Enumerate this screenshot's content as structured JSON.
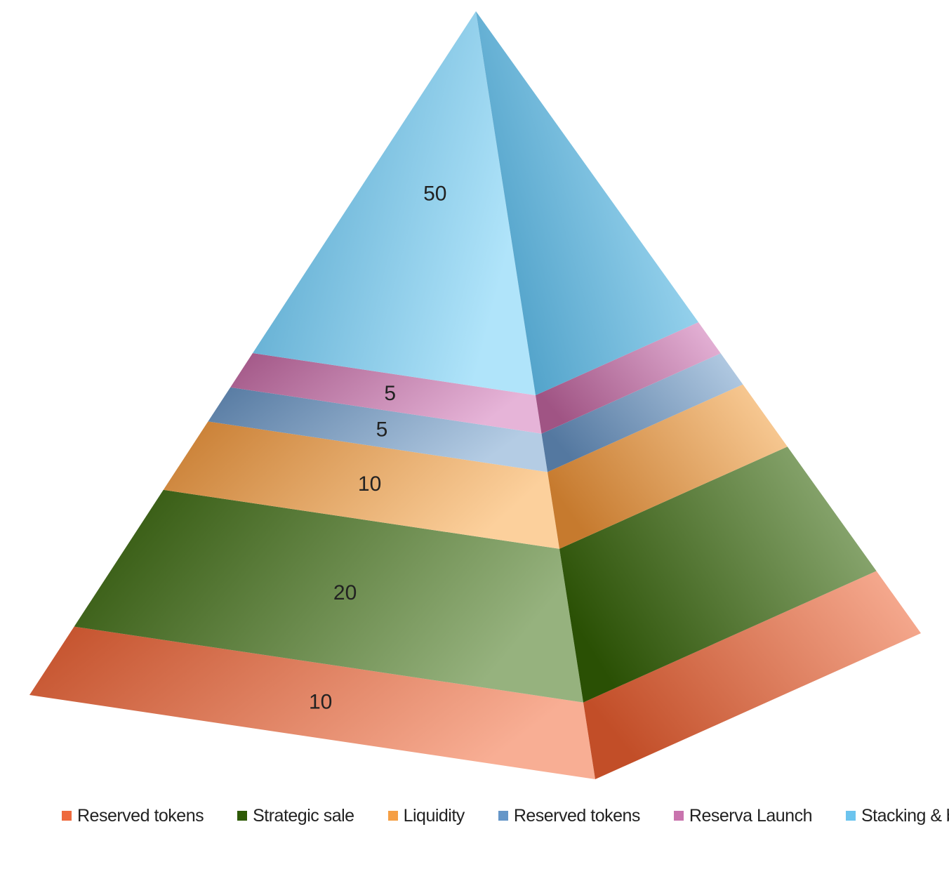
{
  "chart_data": {
    "type": "pyramid",
    "order": "bottom-to-top",
    "series": [
      {
        "name": "Reserved tokens",
        "value": 10,
        "color": "#ee6a3d",
        "dark": "#c24e28",
        "light": "#f8ae94"
      },
      {
        "name": "Strategic sale",
        "value": 20,
        "color": "#2e5a06",
        "dark": "#2a5004",
        "light": "#96b27e"
      },
      {
        "name": "Liquidity",
        "value": 10,
        "color": "#f59f45",
        "dark": "#c67a2e",
        "light": "#fcd09c"
      },
      {
        "name": "Reserved tokens",
        "value": 5,
        "color": "#6596c8",
        "dark": "#5478a0",
        "light": "#b4cce4"
      },
      {
        "name": "Reserva Launch",
        "value": 5,
        "color": "#c974ae",
        "dark": "#a05484",
        "light": "#e6b4d8"
      },
      {
        "name": "Stacking & burn",
        "value": 50,
        "color": "#6cc4ee",
        "dark": "#4ea0c8",
        "light": "#b0e4fa"
      }
    ],
    "legend_position": "bottom"
  }
}
